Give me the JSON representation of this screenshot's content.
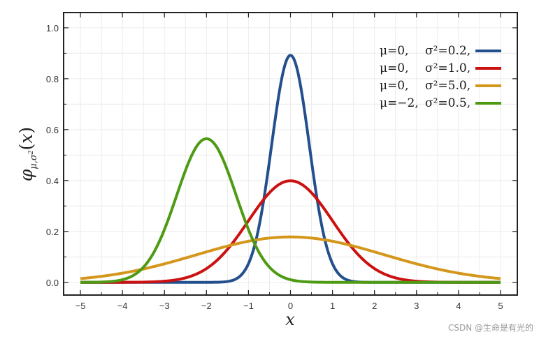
{
  "chart_data": {
    "type": "line",
    "xlabel": "x",
    "ylabel": "φμ,σ²(x)",
    "xlim": [
      -5.4,
      5.4
    ],
    "ylim": [
      -0.05,
      1.06
    ],
    "x_ticks": [
      -5,
      -4,
      -3,
      -2,
      -1,
      0,
      1,
      2,
      3,
      4,
      5
    ],
    "y_ticks": [
      0.0,
      0.2,
      0.4,
      0.6,
      0.8,
      1.0
    ],
    "x_tick_labels": [
      "−5",
      "−4",
      "−3",
      "−2",
      "−1",
      "0",
      "1",
      "2",
      "3",
      "4",
      "5"
    ],
    "y_tick_labels": [
      "0.0",
      "0.2",
      "0.4",
      "0.6",
      "0.8",
      "1.0"
    ],
    "grid": true,
    "legend_position": "top-right",
    "series": [
      {
        "name": "μ=0, σ²=0.2,",
        "mu_label": "μ=0,",
        "sigma_label": "σ²=0.2,",
        "mu": 0,
        "variance": 0.2,
        "color": "#23508c",
        "peak": 0.892
      },
      {
        "name": "μ=0, σ²=1.0,",
        "mu_label": "μ=0,",
        "sigma_label": "σ²=1.0,",
        "mu": 0,
        "variance": 1.0,
        "color": "#cc1111",
        "peak": 0.399
      },
      {
        "name": "μ=0, σ²=5.0,",
        "mu_label": "μ=0,",
        "sigma_label": "σ²=5.0,",
        "mu": 0,
        "variance": 5.0,
        "color": "#d4961b",
        "peak": 0.178
      },
      {
        "name": "μ=−2, σ²=0.5,",
        "mu_label": "μ=−2,",
        "sigma_label": "σ²=0.5,",
        "mu": -2,
        "variance": 0.5,
        "color": "#4e9b13",
        "peak": 0.564
      }
    ]
  },
  "watermark": "CSDN @生命是有光的"
}
